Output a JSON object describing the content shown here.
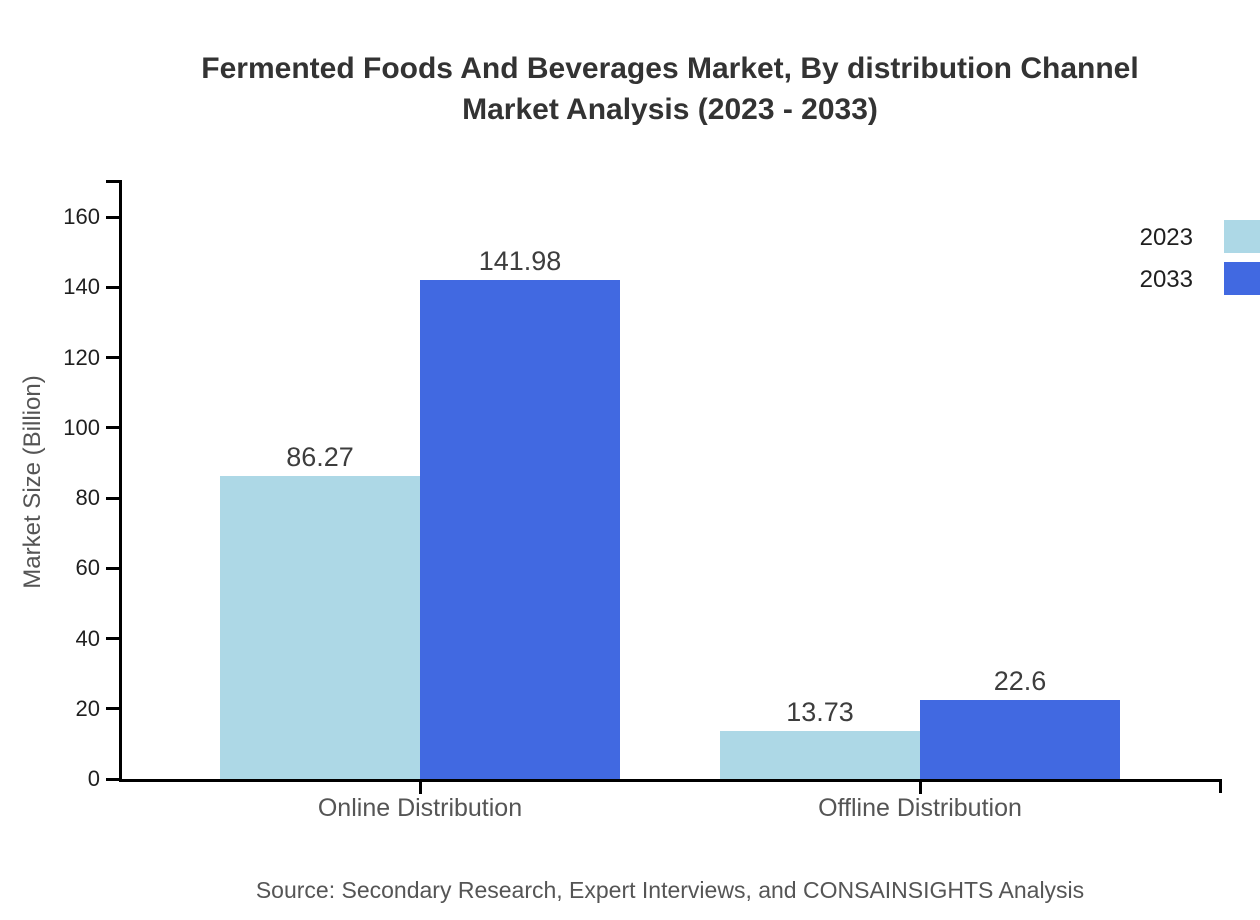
{
  "title": {
    "line1": "Fermented Foods And Beverages Market, By distribution Channel",
    "line2": "Market Analysis (2023 - 2033)"
  },
  "source": "Source: Secondary Research, Expert Interviews, and CONSAINSIGHTS Analysis",
  "chart_data": {
    "type": "bar",
    "title": "Fermented Foods And Beverages Market, By distribution Channel Market Analysis (2023 - 2033)",
    "categories": [
      "Online Distribution",
      "Offline Distribution"
    ],
    "series": [
      {
        "name": "2023",
        "color": "#ADD8E6",
        "values": [
          86.27,
          13.73
        ]
      },
      {
        "name": "2033",
        "color": "#4169E1",
        "values": [
          141.98,
          22.6
        ]
      }
    ],
    "value_labels": [
      [
        "86.27",
        "13.73"
      ],
      [
        "141.98",
        "22.6"
      ]
    ],
    "xlabel": "",
    "ylabel": "Market Size (Billion)",
    "yticks": [
      0,
      20,
      40,
      60,
      80,
      100,
      120,
      140,
      160
    ],
    "ylim": [
      0,
      170
    ],
    "grid": false,
    "legend_position": "top-right",
    "axis_color": "#000000"
  }
}
